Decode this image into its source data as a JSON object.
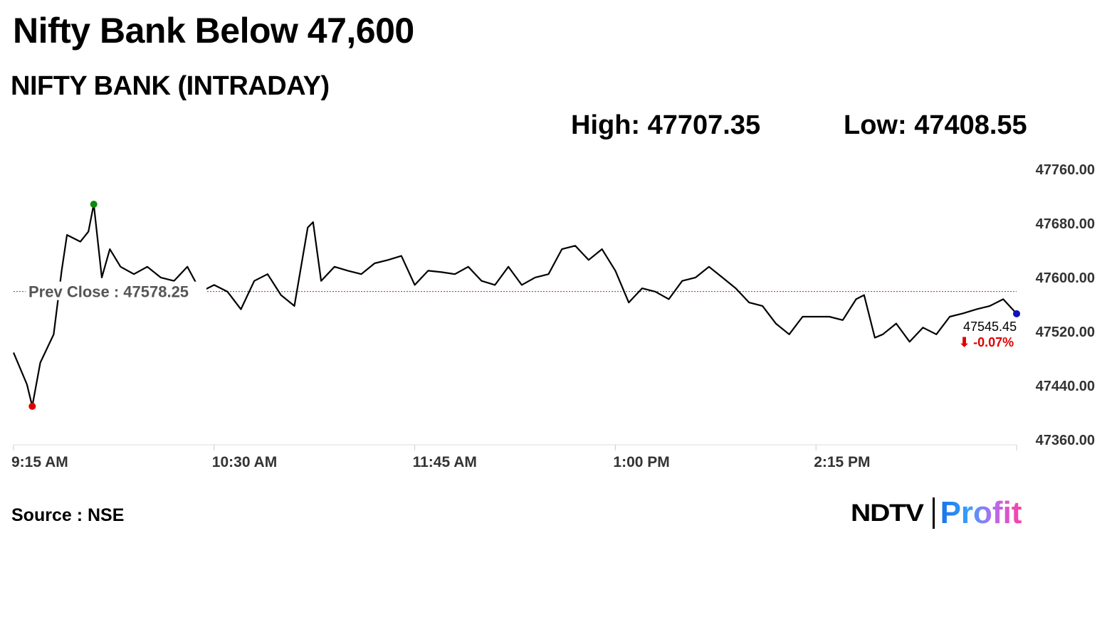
{
  "header": {
    "title": "Nifty Bank Below 47,600",
    "subtitle": "NIFTY BANK (INTRADAY)",
    "high": "High: 47707.35",
    "low": "Low: 47408.55"
  },
  "footer": {
    "source": "Source : NSE",
    "logo_ndtv": "NDTV",
    "logo_profit": "Profit"
  },
  "chart_data": {
    "type": "line",
    "title": "NIFTY BANK (INTRADAY)",
    "xlabel": "",
    "ylabel": "",
    "ylim": [
      47360,
      47760
    ],
    "xlim_minutes_from_open": [
      0,
      375
    ],
    "y_ticks": [
      "47760.00",
      "47680.00",
      "47600.00",
      "47520.00",
      "47440.00",
      "47360.00"
    ],
    "y_tick_values": [
      47760,
      47680,
      47600,
      47520,
      47440,
      47360
    ],
    "x_ticks": [
      "9:15 AM",
      "10:30 AM",
      "11:45 AM",
      "1:00 PM",
      "2:15 PM"
    ],
    "x_tick_minutes": [
      0,
      75,
      150,
      225,
      300
    ],
    "prev_close": {
      "label": "Prev Close : 47578.25",
      "value": 47578.25
    },
    "last": {
      "label": "47545.45",
      "change": "⬇ -0.07%",
      "value": 47545.45
    },
    "high_point": {
      "minute": 30,
      "value": 47707.35,
      "color": "#0a8a0a"
    },
    "low_point": {
      "minute": 7,
      "value": 47408.55,
      "color": "#e00000"
    },
    "series": [
      {
        "name": "Nifty Bank",
        "minutes": [
          0,
          5,
          7,
          10,
          15,
          18,
          20,
          25,
          28,
          30,
          33,
          36,
          40,
          45,
          50,
          55,
          60,
          65,
          70,
          75,
          80,
          85,
          90,
          95,
          100,
          105,
          110,
          112,
          115,
          120,
          125,
          130,
          135,
          140,
          145,
          150,
          155,
          160,
          165,
          170,
          175,
          180,
          185,
          190,
          195,
          200,
          205,
          210,
          215,
          220,
          225,
          230,
          235,
          240,
          245,
          250,
          255,
          260,
          265,
          270,
          275,
          280,
          285,
          290,
          295,
          300,
          305,
          310,
          315,
          318,
          322,
          325,
          330,
          335,
          340,
          345,
          350,
          355,
          360,
          365,
          370,
          375
        ],
        "values": [
          47488,
          47441,
          47408.55,
          47473,
          47515,
          47609,
          47662,
          47652,
          47667,
          47707.35,
          47599,
          47641,
          47615,
          47604,
          47615,
          47599,
          47594,
          47615,
          47578,
          47588,
          47578,
          47552,
          47594,
          47604,
          47573,
          47557,
          47673,
          47681,
          47594,
          47615,
          47609,
          47604,
          47620,
          47625,
          47631,
          47588,
          47609,
          47607,
          47604,
          47615,
          47594,
          47588,
          47615,
          47588,
          47599,
          47604,
          47641,
          47646,
          47625,
          47641,
          47609,
          47562,
          47583,
          47578,
          47567,
          47594,
          47599,
          47615,
          47599,
          47583,
          47562,
          47557,
          47531,
          47515,
          47541,
          47541,
          47541,
          47536,
          47567,
          47573,
          47510,
          47515,
          47531,
          47504,
          47525,
          47515,
          47541,
          47546,
          47552,
          47557,
          47567,
          47545.45
        ]
      }
    ],
    "colors": {
      "line": "#000000",
      "prev_close": "#d11a1a",
      "change": "#e00000",
      "last_dot": "#1010c0"
    }
  }
}
